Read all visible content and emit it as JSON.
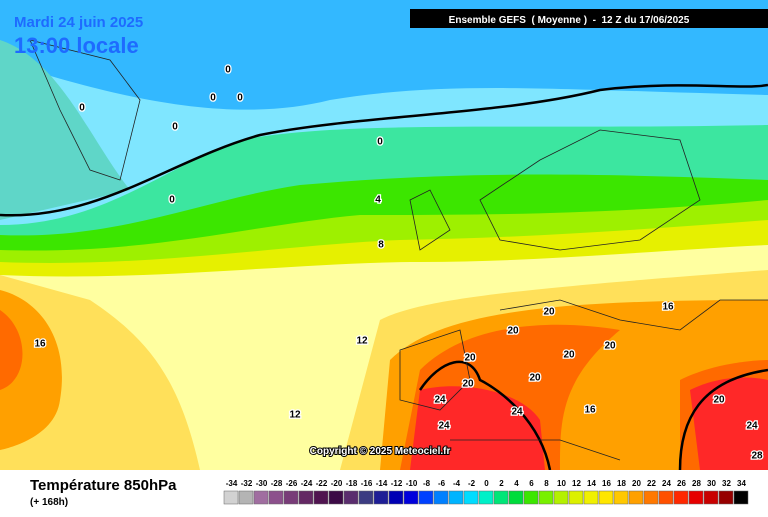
{
  "header": {
    "date": "Mardi 24 juin 2025",
    "time": "13:00 locale",
    "model": "Ensemble GEFS  ( Moyenne )  -  12 Z du 17/06/2025",
    "copyright": "Copyright © 2025 Meteociel.fr"
  },
  "contour_labels": [
    0,
    0,
    0,
    0,
    0,
    0,
    0,
    4,
    8,
    16,
    12,
    12,
    20,
    20,
    16,
    20,
    20,
    20,
    20,
    20,
    24,
    24,
    16,
    20,
    24,
    24,
    28
  ],
  "footer": {
    "title": "Température 850hPa",
    "lead": "(+ 168h)"
  },
  "legend": {
    "ticks": [
      -34,
      -32,
      -30,
      -28,
      -26,
      -24,
      -22,
      -20,
      -18,
      -16,
      -14,
      -12,
      -10,
      -8,
      -6,
      -4,
      -2,
      0,
      2,
      4,
      6,
      8,
      10,
      12,
      14,
      16,
      18,
      20,
      22,
      24,
      26,
      28,
      30,
      32,
      34
    ],
    "colors": [
      "#d2d2d2",
      "#b4b4b4",
      "#a06ea0",
      "#8c508c",
      "#783c78",
      "#642864",
      "#501450",
      "#3c0a46",
      "#5a2d6e",
      "#3c3c82",
      "#1e1e96",
      "#0000b4",
      "#0000dc",
      "#0040ff",
      "#0080ff",
      "#00b4ff",
      "#00dcff",
      "#00f0c8",
      "#00e678",
      "#00dc3c",
      "#3ce600",
      "#78f000",
      "#b4f000",
      "#dcf000",
      "#f0f000",
      "#ffe600",
      "#ffc800",
      "#ffa000",
      "#ff7800",
      "#ff5000",
      "#ff2800",
      "#e60000",
      "#c80000",
      "#960000",
      "#000000"
    ]
  }
}
